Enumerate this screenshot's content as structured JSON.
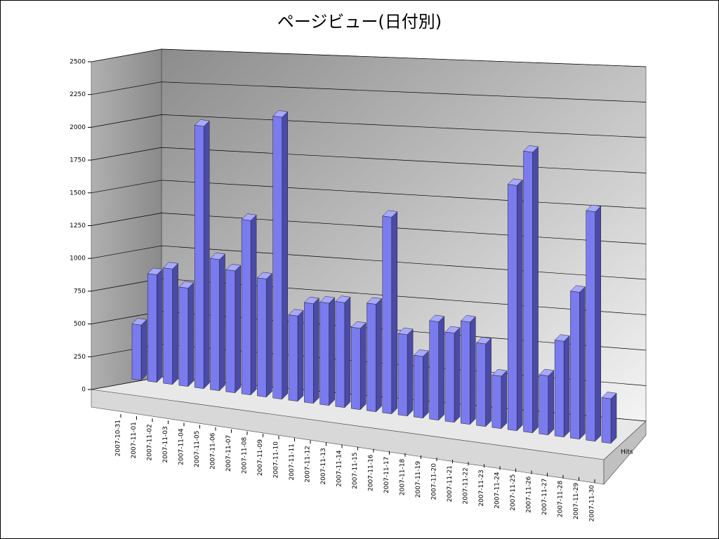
{
  "chart_data": {
    "type": "bar3d",
    "title": "ページビュー(日付別)",
    "categories": [
      "2007-10-31",
      "2007-11-01",
      "2007-11-02",
      "2007-11-03",
      "2007-11-04",
      "2007-11-05",
      "2007-11-06",
      "2007-11-07",
      "2007-11-08",
      "2007-11-09",
      "2007-11-10",
      "2007-11-11",
      "2007-11-12",
      "2007-11-13",
      "2007-11-14",
      "2007-11-15",
      "2007-11-16",
      "2007-11-17",
      "2007-11-18",
      "2007-11-19",
      "2007-11-20",
      "2007-11-21",
      "2007-11-22",
      "2007-11-23",
      "2007-11-24",
      "2007-11-25",
      "2007-11-26",
      "2007-11-27",
      "2007-11-28",
      "2007-11-29",
      "2007-11-30"
    ],
    "series": [
      {
        "name": "Hits",
        "color": "#7b7bf0",
        "values": [
          420,
          820,
          880,
          750,
          2000,
          1000,
          930,
          1330,
          900,
          2150,
          650,
          760,
          780,
          800,
          620,
          820,
          1500,
          620,
          470,
          750,
          680,
          780,
          630,
          400,
          1870,
          2140,
          450,
          730,
          1120,
          1750,
          340
        ]
      }
    ],
    "ylim": [
      0,
      2500
    ],
    "yticks": [
      0,
      250,
      500,
      750,
      1000,
      1250,
      1500,
      1750,
      2000,
      2250,
      2500
    ],
    "grid": true
  }
}
